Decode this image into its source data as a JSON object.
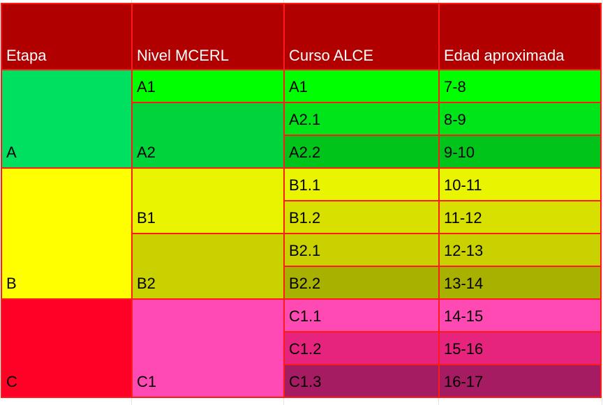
{
  "table": {
    "headers": [
      "Etapa",
      "Nivel MCERL",
      "Curso ALCE",
      "Edad aproximada"
    ],
    "header_color": "#b00000",
    "border_color": "#ff1a1a",
    "stages": [
      {
        "etapa": "A",
        "color": "#00e060",
        "levels": [
          {
            "nivel": "A1",
            "color": "#00ff00",
            "courses": [
              {
                "curso": "A1",
                "edad": "7-8",
                "color": "#00ff00"
              }
            ]
          },
          {
            "nivel": "A2",
            "color": "#00d43a",
            "courses": [
              {
                "curso": "A2.1",
                "edad": "8-9",
                "color": "#00e41a"
              },
              {
                "curso": "A2.2",
                "edad": "9-10",
                "color": "#00c41a"
              }
            ]
          }
        ]
      },
      {
        "etapa": "B",
        "color": "#ffff00",
        "levels": [
          {
            "nivel": "B1",
            "color": "#e8f400",
            "courses": [
              {
                "curso": "B1.1",
                "edad": "10-11",
                "color": "#e8f400"
              },
              {
                "curso": "B1.2",
                "edad": "11-12",
                "color": "#d8e000"
              }
            ]
          },
          {
            "nivel": "B2",
            "color": "#c9d200",
            "courses": [
              {
                "curso": "B2.1",
                "edad": "12-13",
                "color": "#c9d200"
              },
              {
                "curso": "B2.2",
                "edad": "13-14",
                "color": "#a8b000"
              }
            ]
          }
        ]
      },
      {
        "etapa": "C",
        "color": "#ff0026",
        "levels": [
          {
            "nivel": "C1",
            "color": "#ff4ab4",
            "courses": [
              {
                "curso": "C1.1",
                "edad": "14-15",
                "color": "#ff4ab4"
              },
              {
                "curso": "C1.2",
                "edad": "15-16",
                "color": "#e6247e"
              },
              {
                "curso": "C1.3",
                "edad": "16-17",
                "color": "#a61c62"
              }
            ]
          }
        ]
      }
    ]
  }
}
